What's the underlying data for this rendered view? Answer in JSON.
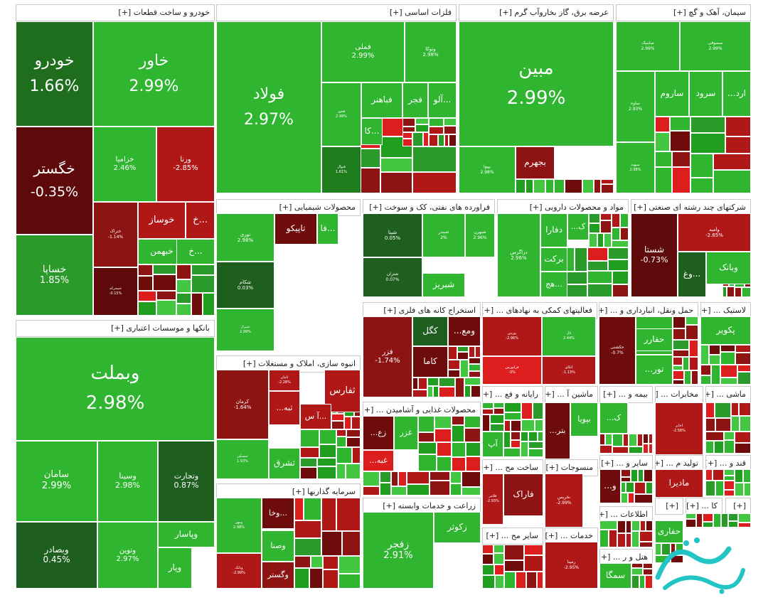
{
  "chart_data": {
    "type": "treemap",
    "title": "",
    "colors": {
      "up_strong": "#1f9e1f",
      "up": "#2fb52f",
      "up_light": "#43c743",
      "down": "#b01818",
      "down_dark": "#6e0c0c",
      "down_bright": "#dd1e1e",
      "neutral_dark": "#1e5e1e",
      "neutral": "#2d8a2d"
    },
    "sectors": [
      {
        "label": "خودرو و ساخت قطعات [+]"
      },
      {
        "label": "فلزات اساسی [+]"
      },
      {
        "label": "عرضه برق، گاز بخاروآب گرم [+]"
      },
      {
        "label": "سیمان، آهک و گچ [+]"
      },
      {
        "label": "بانکها و موسسات اعتباری [+]"
      },
      {
        "label": "محصولات شیمیایی [+]"
      },
      {
        "label": "فراورده های نفتی، کک و سوخت [+]"
      },
      {
        "label": "مواد و محصولات دارویی [+]"
      },
      {
        "label": "شرکتهای چند رشته ای صنعتی [+]"
      },
      {
        "label": "استخراج کانه های فلزی [+]"
      },
      {
        "label": "فعالیتهای کمکی به نهادهای ... [+]"
      },
      {
        "label": "حمل ونقل، انبارداری و ... [+]"
      },
      {
        "label": "لاستیک ... [+]"
      },
      {
        "label": "انبوه سازی، املاک و مستغلات [+]"
      },
      {
        "label": "محصولات غذایی و آشامیدن ... [+]"
      },
      {
        "label": "رایانه و فع ... [+]"
      },
      {
        "label": "ماشین آ ... [+]"
      },
      {
        "label": "بیمه و ... [+]"
      },
      {
        "label": "مخابرات ... [+]"
      },
      {
        "label": "ماشی ... [+]"
      },
      {
        "label": "سرمایه گذاریها [+]"
      },
      {
        "label": "زراعت و خدمات وابسته [+]"
      },
      {
        "label": "ساخت مح ... [+]"
      },
      {
        "label": "منسوجات [+]"
      },
      {
        "label": "سایر و ... [+]"
      },
      {
        "label": "تولید م ... [+]"
      },
      {
        "label": "قند و ... [+]"
      },
      {
        "label": "اطلاعات ... [+]"
      },
      {
        "label": "سایر مح ... [+]"
      },
      {
        "label": "خدمات ... [+]"
      },
      {
        "label": "هتل و ر ... [+]"
      },
      {
        "label": "[+]"
      },
      {
        "label": "کا ... [+]"
      },
      {
        "label": "[+]"
      }
    ],
    "stocks": [
      {
        "name": "خودرو",
        "change": "1.66%",
        "color": "#1e6e1e"
      },
      {
        "name": "خاور",
        "change": "2.99%",
        "color": "#2fb52f"
      },
      {
        "name": "خگستر",
        "change": "-0.35%",
        "color": "#5e0a0a"
      },
      {
        "name": "خزامیا",
        "change": "2.46%",
        "color": "#2fb52f"
      },
      {
        "name": "ورنا",
        "change": "-2.85%",
        "color": "#b01818"
      },
      {
        "name": "ختراک",
        "change": "-1.14%",
        "color": "#8e1414"
      },
      {
        "name": "خوساز",
        "change": "",
        "color": "#b01818"
      },
      {
        "name": "خ...",
        "change": "",
        "color": "#b01818"
      },
      {
        "name": "خبهمن",
        "change": "",
        "color": "#2fb52f"
      },
      {
        "name": "خ...",
        "change": "",
        "color": "#2fb52f"
      },
      {
        "name": "خساپا",
        "change": "1.85%",
        "color": "#2a9a2a"
      },
      {
        "name": "خمحرکه",
        "change": "-0.15%",
        "color": "#5e0a0a"
      },
      {
        "name": "فولاد",
        "change": "2.97%",
        "color": "#2fb52f"
      },
      {
        "name": "فملی",
        "change": "2.99%",
        "color": "#2fb52f"
      },
      {
        "name": "وتوکا",
        "change": "2.98%",
        "color": "#2fb52f"
      },
      {
        "name": "فخوز",
        "change": "2.99%",
        "color": "#2fb52f"
      },
      {
        "name": "فباهنر",
        "change": "",
        "color": "#2fb52f"
      },
      {
        "name": "فجر",
        "change": "",
        "color": "#2fb52f"
      },
      {
        "name": "آلو...",
        "change": "",
        "color": "#2fb52f"
      },
      {
        "name": "کا...",
        "change": "",
        "color": "#2fb52f"
      },
      {
        "name": "فنوال",
        "change": "1.61%",
        "color": "#1e7e1e"
      },
      {
        "name": "مبین",
        "change": "2.99%",
        "color": "#2fb52f"
      },
      {
        "name": "بپیوا",
        "change": "2.98%",
        "color": "#2fb52f"
      },
      {
        "name": "بجهرم",
        "change": "",
        "color": "#8e1414"
      },
      {
        "name": "ساینیک",
        "change": "2.99%",
        "color": "#2fb52f"
      },
      {
        "name": "سصوفی",
        "change": "2.99%",
        "color": "#2fb52f"
      },
      {
        "name": "ساوه",
        "change": "2.93%",
        "color": "#2fb52f"
      },
      {
        "name": "ساروم",
        "change": "",
        "color": "#2fb52f"
      },
      {
        "name": "سرود",
        "change": "",
        "color": "#2fb52f"
      },
      {
        "name": "...ارد",
        "change": "",
        "color": "#2fb52f"
      },
      {
        "name": "سبهبه",
        "change": "2.98%",
        "color": "#2fb52f"
      },
      {
        "name": "وبملت",
        "change": "2.98%",
        "color": "#2fb52f"
      },
      {
        "name": "سامان",
        "change": "2.99%",
        "color": "#2fb52f"
      },
      {
        "name": "وسینا",
        "change": "2.98%",
        "color": "#2fb52f"
      },
      {
        "name": "وتجارت",
        "change": "0.87%",
        "color": "#1e5e1e"
      },
      {
        "name": "وبصادر",
        "change": "0.45%",
        "color": "#1e5e1e"
      },
      {
        "name": "وتوین",
        "change": "2.97%",
        "color": "#2fb52f"
      },
      {
        "name": "وپاسار",
        "change": "",
        "color": "#2fb52f"
      },
      {
        "name": "وپار",
        "change": "",
        "color": "#2fb52f"
      },
      {
        "name": "نوری",
        "change": "2.98%",
        "color": "#2fb52f"
      },
      {
        "name": "تاپیکو",
        "change": "",
        "color": "#6e0c0c"
      },
      {
        "name": "فا...",
        "change": "",
        "color": "#2fb52f"
      },
      {
        "name": "شکام",
        "change": "0.03%",
        "color": "#1e5e1e"
      },
      {
        "name": "شیراز",
        "change": "2.99%",
        "color": "#2fb52f"
      },
      {
        "name": "شپنا",
        "change": "0.05%",
        "color": "#1e5e1e"
      },
      {
        "name": "شبندر",
        "change": "2%",
        "color": "#2fb52f"
      },
      {
        "name": "شبهرن",
        "change": "2.96%",
        "color": "#2fb52f"
      },
      {
        "name": "شتران",
        "change": "0.07%",
        "color": "#1e5e1e"
      },
      {
        "name": "شبریز",
        "change": "",
        "color": "#2fb52f"
      },
      {
        "name": "دفارا",
        "change": "",
        "color": "#2fb52f"
      },
      {
        "name": "...ک",
        "change": "",
        "color": "#2fb52f"
      },
      {
        "name": "دزاگرس",
        "change": "2.96%",
        "color": "#2fb52f"
      },
      {
        "name": "برکت",
        "change": "",
        "color": "#2fb52f"
      },
      {
        "name": "هج...",
        "change": "",
        "color": "#2fb52f"
      },
      {
        "name": "شستا",
        "change": "-0.73%",
        "color": "#5e0a0a"
      },
      {
        "name": "وامید",
        "change": "-2.65%",
        "color": "#b01818"
      },
      {
        "name": "وغ...",
        "change": "",
        "color": "#1e5e1e"
      },
      {
        "name": "وبانک",
        "change": "",
        "color": "#2fb52f"
      },
      {
        "name": "فزر",
        "change": "-1.74%",
        "color": "#8e1414"
      },
      {
        "name": "کگل",
        "change": "",
        "color": "#1e5e1e"
      },
      {
        "name": "...ومع",
        "change": "",
        "color": "#6e0c0c"
      },
      {
        "name": "کاما",
        "change": "",
        "color": "#6e0c0c"
      },
      {
        "name": "بورس",
        "change": "-2.96%",
        "color": "#b01818"
      },
      {
        "name": "ثال",
        "change": "2.44%",
        "color": "#2fb52f"
      },
      {
        "name": "فرابورس",
        "change": "-3%",
        "color": "#dd1e1e"
      },
      {
        "name": "اتکای",
        "change": "-1.13%",
        "color": "#b01818"
      },
      {
        "name": "حکشتی",
        "change": "-0.7%",
        "color": "#6e0c0c"
      },
      {
        "name": "...ح",
        "change": "",
        "color": "#2fb52f"
      },
      {
        "name": "حفارر",
        "change": "",
        "color": "#2fb52f"
      },
      {
        "name": "...تور",
        "change": "",
        "color": "#2fb52f"
      },
      {
        "name": "پکویر",
        "change": "",
        "color": "#2fb52f"
      },
      {
        "name": "کرمان",
        "change": "-1.64%",
        "color": "#8e1414"
      },
      {
        "name": "ثامان",
        "change": "-2.28%",
        "color": "#b01818"
      },
      {
        "name": "ثفارس",
        "change": "",
        "color": "#b01818"
      },
      {
        "name": "...ثبه",
        "change": "",
        "color": "#b01818"
      },
      {
        "name": "آ س...",
        "change": "",
        "color": "#b01818"
      },
      {
        "name": "ثمسکن",
        "change": "1.93%",
        "color": "#2fb52f"
      },
      {
        "name": "ثشرق",
        "change": "",
        "color": "#2fb52f"
      },
      {
        "name": "...زع",
        "change": "",
        "color": "#6e0c0c"
      },
      {
        "name": "غزر",
        "change": "",
        "color": "#2fb52f"
      },
      {
        "name": "...غبه",
        "change": "",
        "color": "#dd1e1e"
      },
      {
        "name": "آپ",
        "change": "",
        "color": "#2fb52f"
      },
      {
        "name": "...بتر",
        "change": "",
        "color": "#6e0c0c"
      },
      {
        "name": "بپویا",
        "change": "",
        "color": "#2fb52f"
      },
      {
        "name": "...ک",
        "change": "",
        "color": "#2fb52f"
      },
      {
        "name": "اخابر",
        "change": "-2.58%",
        "color": "#b01818"
      },
      {
        "name": "وخا...",
        "change": "",
        "color": "#6e0c0c"
      },
      {
        "name": "ومهر",
        "change": "2.98%",
        "color": "#2fb52f"
      },
      {
        "name": "وصنا",
        "change": "",
        "color": "#2fb52f"
      },
      {
        "name": "وبانک",
        "change": "-2.99%",
        "color": "#b01818"
      },
      {
        "name": "وگستر",
        "change": "",
        "color": "#8e1414"
      },
      {
        "name": "زکوثر",
        "change": "",
        "color": "#2fb52f"
      },
      {
        "name": "زفجر",
        "change": "2.91%",
        "color": "#2fb52f"
      },
      {
        "name": "فاراک",
        "change": "",
        "color": "#8e1414"
      },
      {
        "name": "فلامر",
        "change": "-2.93%",
        "color": "#b01818"
      },
      {
        "name": "نخریس",
        "change": "-2.99%",
        "color": "#b01818"
      },
      {
        "name": "...و",
        "change": "",
        "color": "#6e0c0c"
      },
      {
        "name": "مادیرا",
        "change": "",
        "color": "#b01818"
      },
      {
        "name": "حفاری",
        "change": "",
        "color": "#2fb52f"
      },
      {
        "name": "رمپنا",
        "change": "-2.95%",
        "color": "#b01818"
      },
      {
        "name": "سمگا",
        "change": "",
        "color": "#2fb52f"
      }
    ]
  }
}
